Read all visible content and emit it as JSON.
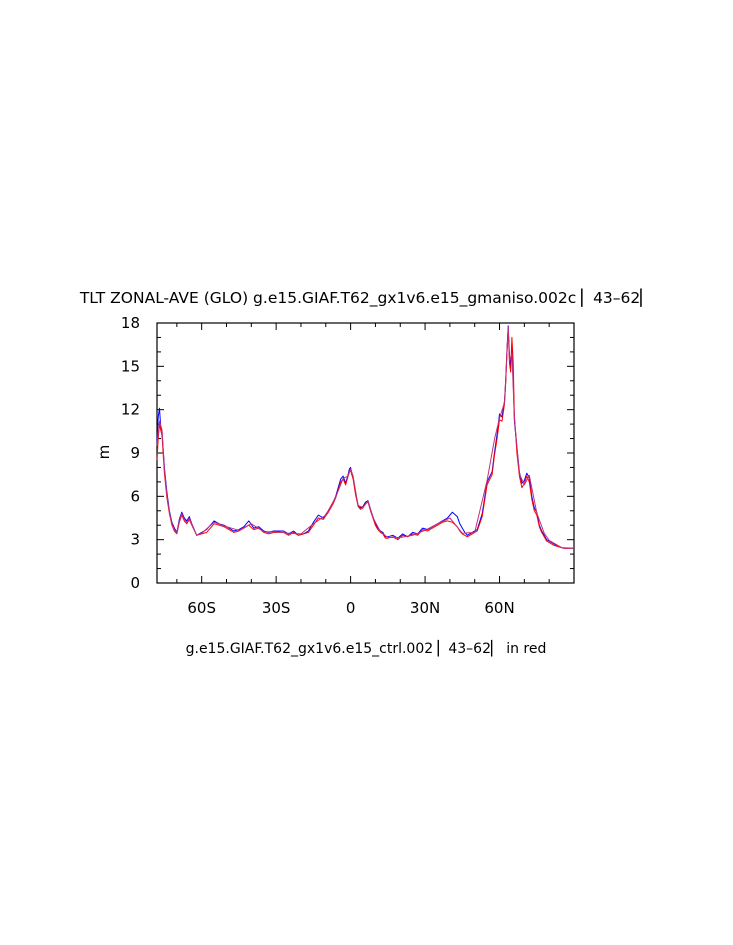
{
  "chart_data": {
    "type": "line",
    "title": "TLT ZONAL-AVE (GLO) g.e15.GIAF.T62_gx1v6.e15_gmaniso.002c ▏43–62▏",
    "ylabel": "m",
    "caption": "g.e15.GIAF.T62_gx1v6.e15_ctrl.002 ▏43–62▏ in red",
    "xlim": [
      -78,
      90
    ],
    "ylim": [
      0,
      18
    ],
    "x_ticks": [
      {
        "value": -60,
        "label": "60S"
      },
      {
        "value": -30,
        "label": "30S"
      },
      {
        "value": 0,
        "label": "0"
      },
      {
        "value": 30,
        "label": "30N"
      },
      {
        "value": 60,
        "label": "60N"
      }
    ],
    "y_ticks": [
      {
        "value": 0,
        "label": "0"
      },
      {
        "value": 3,
        "label": "3"
      },
      {
        "value": 6,
        "label": "6"
      },
      {
        "value": 9,
        "label": "9"
      },
      {
        "value": 12,
        "label": "12"
      },
      {
        "value": 15,
        "label": "15"
      },
      {
        "value": 18,
        "label": "18"
      }
    ],
    "grid": false,
    "series": [
      {
        "color": "#0000ff",
        "x": [
          -78,
          -77.5,
          -77,
          -76.5,
          -76,
          -75,
          -74,
          -73,
          -72,
          -71,
          -70,
          -69,
          -68,
          -67,
          -66,
          -65,
          -64,
          -62,
          -60,
          -58,
          -57,
          -55,
          -53,
          -51,
          -49,
          -47,
          -45,
          -43,
          -41,
          -39,
          -37,
          -35,
          -33,
          -31,
          -29,
          -27,
          -25,
          -23,
          -21,
          -19,
          -17,
          -15,
          -13,
          -11,
          -9,
          -7,
          -6,
          -4,
          -3,
          -2,
          -1,
          -0.5,
          0,
          0.5,
          1,
          2,
          3,
          4,
          5,
          6,
          7,
          8,
          9,
          10,
          11,
          12,
          13,
          14,
          15,
          17,
          19,
          21,
          23,
          25,
          27,
          29,
          31,
          33,
          35,
          37,
          39,
          41,
          43,
          44,
          45,
          46,
          47,
          49,
          51,
          53,
          55,
          57,
          58,
          59,
          60,
          61,
          62,
          62.5,
          63,
          63.5,
          64,
          64.5,
          65,
          65.5,
          66,
          67,
          68,
          69,
          70,
          71,
          72,
          73,
          74,
          75,
          76,
          77,
          78,
          79,
          80,
          82,
          84,
          86,
          88,
          90
        ],
        "y": [
          9.8,
          11.5,
          12.1,
          10.8,
          10.5,
          8.0,
          6.3,
          5.0,
          4.2,
          3.8,
          3.5,
          4.4,
          4.9,
          4.5,
          4.3,
          4.6,
          4.1,
          3.3,
          3.5,
          3.7,
          3.9,
          4.3,
          4.1,
          4.0,
          3.8,
          3.6,
          3.7,
          3.9,
          4.3,
          3.8,
          3.9,
          3.6,
          3.5,
          3.6,
          3.6,
          3.6,
          3.4,
          3.6,
          3.3,
          3.4,
          3.6,
          4.2,
          4.7,
          4.5,
          5.0,
          5.6,
          6.0,
          7.2,
          7.4,
          6.9,
          7.5,
          7.9,
          8.0,
          7.6,
          7.3,
          6.2,
          5.4,
          5.2,
          5.3,
          5.6,
          5.7,
          5.1,
          4.6,
          4.1,
          3.8,
          3.6,
          3.5,
          3.2,
          3.2,
          3.3,
          3.1,
          3.4,
          3.2,
          3.5,
          3.4,
          3.8,
          3.7,
          3.9,
          4.1,
          4.3,
          4.5,
          4.9,
          4.6,
          4.1,
          3.8,
          3.5,
          3.3,
          3.5,
          3.7,
          4.8,
          7.0,
          7.7,
          9.1,
          10.3,
          11.7,
          11.5,
          12.6,
          14.0,
          16.2,
          17.8,
          15.7,
          15.0,
          16.5,
          14.0,
          11.2,
          9.4,
          7.7,
          6.9,
          7.1,
          7.6,
          7.3,
          6.0,
          5.2,
          4.9,
          4.0,
          3.6,
          3.3,
          3.0,
          2.9,
          2.7,
          2.5,
          2.4,
          2.4,
          2.4
        ]
      },
      {
        "color": "#ff0000",
        "x": [
          -78,
          -77.5,
          -77,
          -76.5,
          -76,
          -75,
          -74,
          -73,
          -72,
          -71,
          -70,
          -69,
          -68,
          -67,
          -66,
          -65,
          -64,
          -62,
          -60,
          -58,
          -57,
          -55,
          -53,
          -51,
          -49,
          -47,
          -45,
          -43,
          -41,
          -39,
          -37,
          -35,
          -33,
          -31,
          -29,
          -27,
          -25,
          -23,
          -21,
          -19,
          -17,
          -15,
          -13,
          -11,
          -9,
          -7,
          -6,
          -4,
          -3,
          -2,
          -1,
          -0.5,
          0,
          0.5,
          1,
          2,
          3,
          4,
          5,
          6,
          7,
          8,
          9,
          10,
          11,
          12,
          13,
          14,
          15,
          17,
          19,
          21,
          23,
          25,
          27,
          29,
          31,
          33,
          35,
          37,
          39,
          41,
          43,
          44,
          45,
          46,
          47,
          49,
          51,
          53,
          55,
          57,
          58,
          59,
          60,
          61,
          62,
          62.5,
          63,
          63.5,
          64,
          64.5,
          65,
          65.5,
          66,
          67,
          68,
          69,
          70,
          71,
          72,
          73,
          74,
          75,
          76,
          77,
          78,
          79,
          80,
          82,
          84,
          86,
          88,
          90
        ],
        "y": [
          8.5,
          10.0,
          11.0,
          10.6,
          10.2,
          7.6,
          5.9,
          4.8,
          4.0,
          3.6,
          3.4,
          4.2,
          4.7,
          4.3,
          4.1,
          4.4,
          4.0,
          3.3,
          3.4,
          3.5,
          3.7,
          4.1,
          4.0,
          3.9,
          3.7,
          3.5,
          3.6,
          3.8,
          4.0,
          3.7,
          3.8,
          3.5,
          3.4,
          3.5,
          3.5,
          3.5,
          3.3,
          3.5,
          3.3,
          3.4,
          3.5,
          4.0,
          4.5,
          4.4,
          4.9,
          5.5,
          5.9,
          7.0,
          7.2,
          6.8,
          7.4,
          7.7,
          7.8,
          7.5,
          7.2,
          6.1,
          5.3,
          5.1,
          5.2,
          5.5,
          5.6,
          5.0,
          4.5,
          4.0,
          3.7,
          3.5,
          3.4,
          3.1,
          3.1,
          3.2,
          3.0,
          3.3,
          3.2,
          3.4,
          3.3,
          3.7,
          3.6,
          3.8,
          4.0,
          4.2,
          4.3,
          4.2,
          3.9,
          3.6,
          3.4,
          3.3,
          3.2,
          3.4,
          3.6,
          4.6,
          6.8,
          7.5,
          8.9,
          10.0,
          11.3,
          11.2,
          12.4,
          13.8,
          16.0,
          17.6,
          15.2,
          14.6,
          17.0,
          15.3,
          11.6,
          9.0,
          7.4,
          6.6,
          6.9,
          7.4,
          7.0,
          5.8,
          5.0,
          4.7,
          3.9,
          3.5,
          3.2,
          2.9,
          2.8,
          2.6,
          2.5,
          2.4,
          2.4,
          2.4
        ]
      },
      {
        "color": "#c0307a",
        "x": [
          -78,
          -77,
          -76,
          -75,
          -74,
          -73,
          -72,
          -71,
          -70,
          -69,
          -68,
          -67,
          -66,
          -65,
          -64,
          -62,
          -60,
          -55,
          -50,
          -45,
          -40,
          -35,
          -30,
          -25,
          -20,
          -15,
          -10,
          -6,
          -3,
          -1,
          0,
          1,
          3,
          5,
          7,
          9,
          12,
          15,
          20,
          25,
          30,
          35,
          40,
          45,
          50,
          55,
          58,
          60,
          62,
          63,
          63.5,
          64,
          65,
          66,
          68,
          70,
          72,
          75,
          78,
          80,
          85,
          90
        ],
        "y": [
          9.5,
          11.2,
          10.6,
          7.9,
          6.1,
          4.9,
          4.1,
          3.7,
          3.45,
          4.3,
          4.8,
          4.4,
          4.2,
          4.5,
          4.05,
          3.3,
          3.45,
          4.2,
          3.9,
          3.65,
          4.1,
          3.55,
          3.55,
          3.45,
          3.4,
          4.1,
          4.7,
          5.95,
          7.25,
          7.4,
          7.9,
          7.4,
          5.35,
          5.25,
          5.65,
          4.55,
          3.55,
          3.15,
          3.15,
          3.3,
          3.65,
          4.1,
          4.5,
          3.45,
          3.5,
          7.1,
          10.0,
          11.4,
          12.5,
          15.9,
          17.7,
          15.4,
          15.9,
          11.4,
          7.55,
          6.8,
          7.45,
          4.85,
          3.45,
          2.95,
          2.45,
          2.4
        ]
      }
    ]
  }
}
